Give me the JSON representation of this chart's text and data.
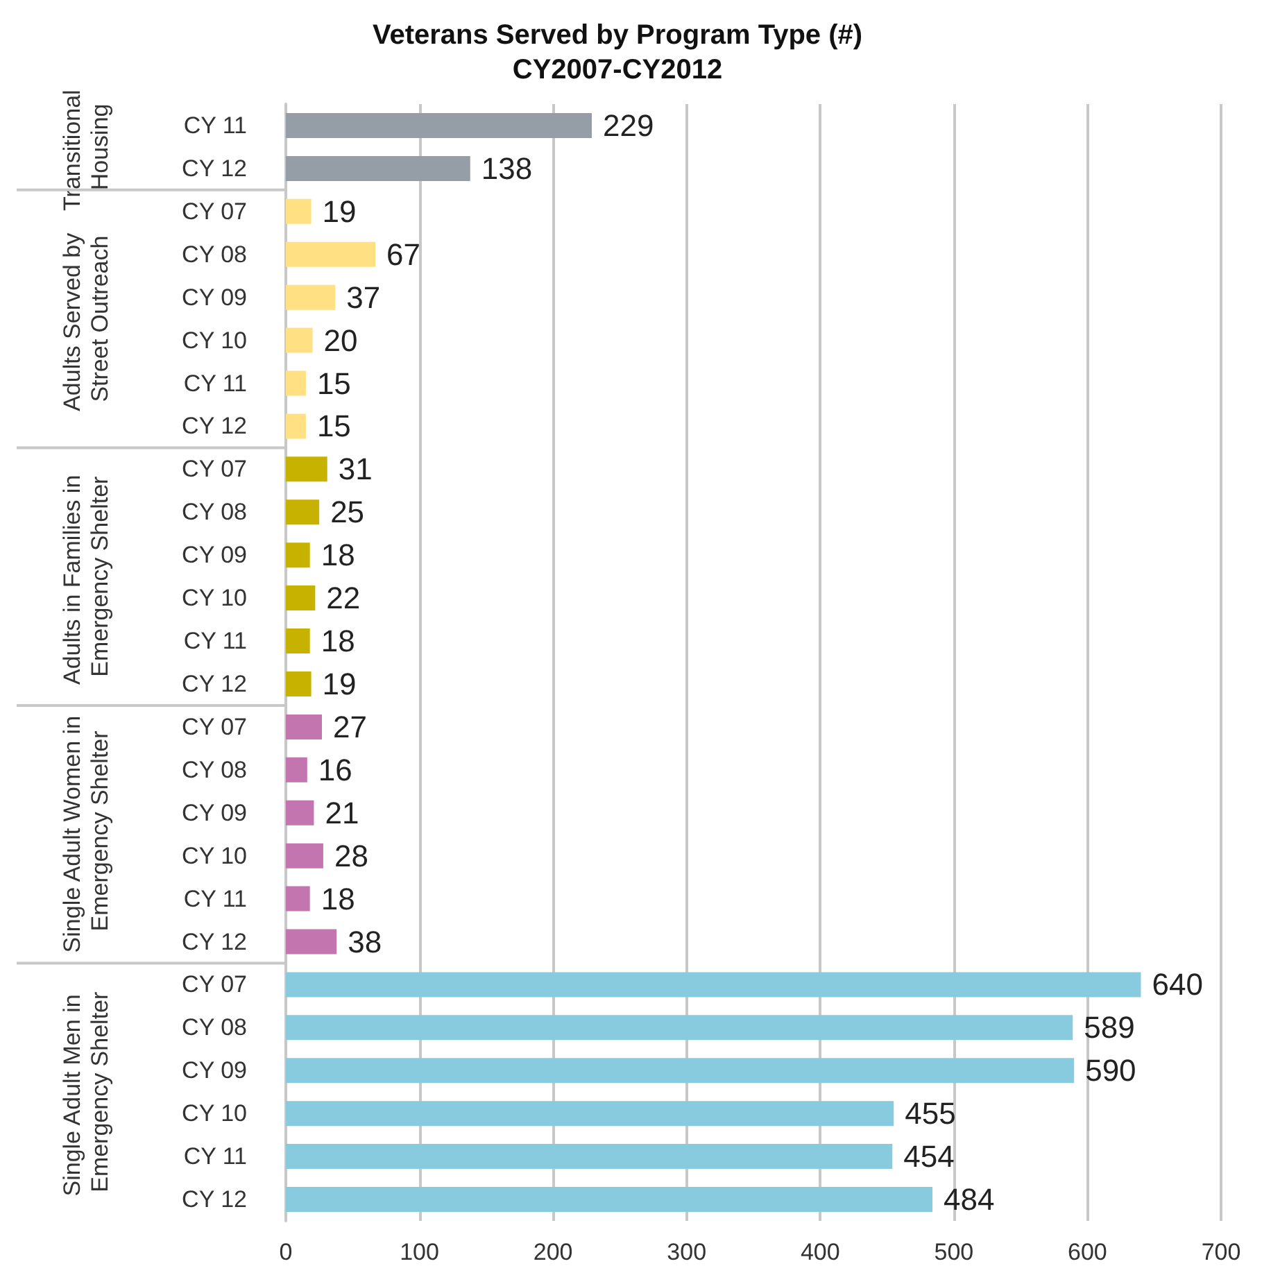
{
  "chart_data": {
    "type": "bar",
    "orientation": "horizontal",
    "title": "Veterans Served by Program Type (#)\nCY2007-CY2012",
    "categories": [
      "CY 11",
      "CY 12",
      "CY 07",
      "CY 08",
      "CY 09",
      "CY 10",
      "CY 11",
      "CY 12",
      "CY 07",
      "CY 08",
      "CY 09",
      "CY 10",
      "CY 11",
      "CY 12",
      "CY 07",
      "CY 08",
      "CY 09",
      "CY 10",
      "CY 11",
      "CY 12",
      "CY 07",
      "CY 08",
      "CY 09",
      "CY 10",
      "CY 11",
      "CY 12"
    ],
    "values": [
      229,
      138,
      19,
      67,
      37,
      20,
      15,
      15,
      31,
      25,
      18,
      22,
      18,
      19,
      27,
      16,
      21,
      28,
      18,
      38,
      640,
      589,
      590,
      455,
      454,
      484
    ],
    "colors": [
      "#959ea7",
      "#959ea7",
      "#ffe083",
      "#ffe083",
      "#ffe083",
      "#ffe083",
      "#ffe083",
      "#ffe083",
      "#c7b200",
      "#c7b200",
      "#c7b200",
      "#c7b200",
      "#c7b200",
      "#c7b200",
      "#c275ae",
      "#c275ae",
      "#c275ae",
      "#c275ae",
      "#c275ae",
      "#c275ae",
      "#88cbdf",
      "#88cbdf",
      "#88cbdf",
      "#88cbdf",
      "#88cbdf",
      "#88cbdf"
    ],
    "annotations": [
      "Transitional Housing",
      "Adults Served by Street Outreach",
      "Adults in Families in Emergency Shelter",
      "Single Adult Women in Emergency Shelter",
      "Single Adult Men in Emergency Shelter"
    ],
    "xlim": [
      0,
      700
    ],
    "xticks": [
      0,
      100,
      200,
      300,
      400,
      500,
      600,
      700
    ],
    "grid": "x",
    "data_labels": true
  }
}
